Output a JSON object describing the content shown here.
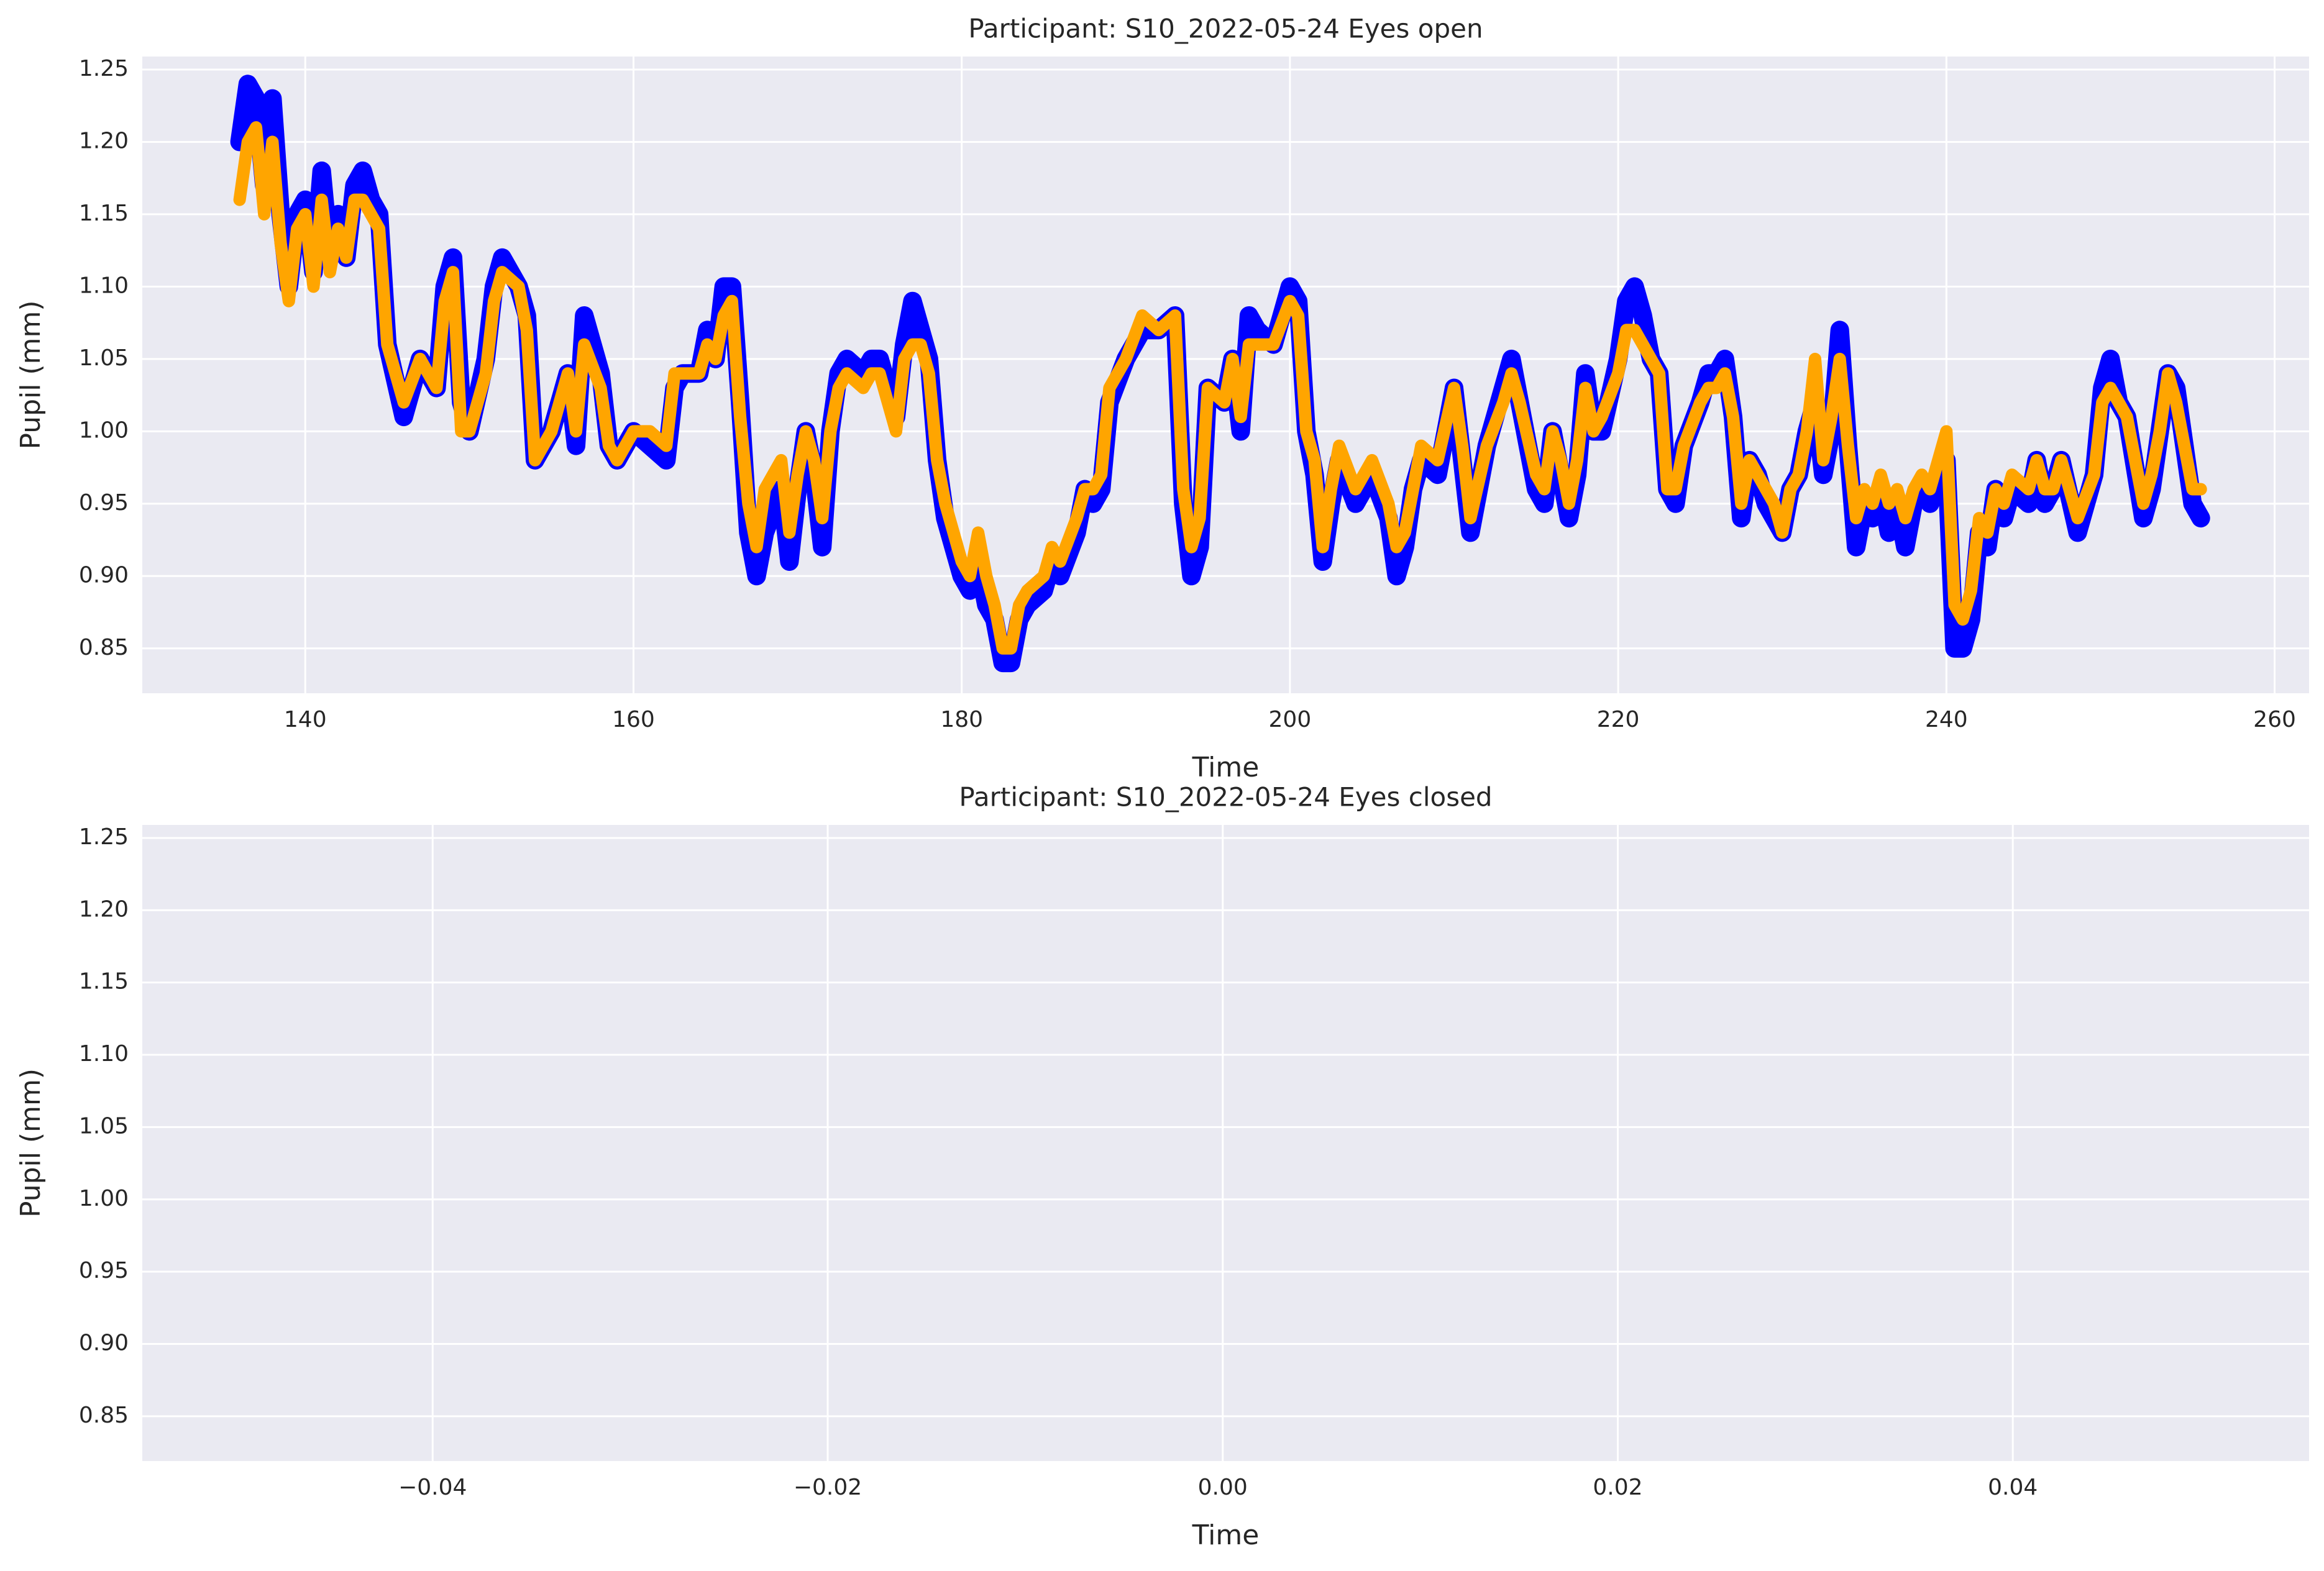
{
  "chart_data": [
    {
      "type": "line",
      "title": "Participant: S10_2022-05-24 Eyes open",
      "x_label": "Time",
      "y_label": "Pupil (mm)",
      "x": [
        136,
        136.5,
        137,
        137.5,
        138,
        138.5,
        139,
        139.5,
        140,
        140.5,
        141,
        141.5,
        142,
        142.5,
        143,
        143.5,
        144,
        144.5,
        145,
        146,
        147,
        148,
        148.5,
        149,
        149.5,
        150,
        151,
        151.5,
        152,
        153,
        153.5,
        154,
        155,
        156,
        156.5,
        157,
        158,
        158.5,
        159,
        160,
        161,
        162,
        162.5,
        163,
        164,
        164.5,
        165,
        165.5,
        166,
        166.5,
        167,
        167.5,
        168,
        169,
        169.5,
        170,
        170.5,
        171,
        171.5,
        172,
        172.5,
        173,
        174,
        174.5,
        175,
        176,
        176.5,
        177,
        177.5,
        178,
        178.5,
        179,
        180,
        180.5,
        181,
        181.5,
        182,
        182.5,
        183,
        183.5,
        184,
        185,
        185.5,
        186,
        187,
        187.5,
        188,
        188.5,
        189,
        190,
        191,
        192,
        193,
        193.5,
        194,
        194.5,
        195,
        196,
        196.5,
        197,
        197.5,
        198,
        199,
        200,
        200.5,
        201,
        201.5,
        202,
        202.5,
        203,
        204,
        205,
        206,
        206.5,
        207,
        207.5,
        208,
        209,
        210,
        210.5,
        211,
        212,
        213,
        213.5,
        214,
        215,
        215.5,
        216,
        216.5,
        217,
        217.5,
        218,
        218.5,
        219,
        220,
        220.5,
        221,
        221.5,
        222,
        222.5,
        223,
        223.5,
        224,
        225,
        225.5,
        226,
        226.5,
        227,
        227.5,
        228,
        228.5,
        229,
        229.5,
        230,
        230.5,
        231,
        231.5,
        232,
        232.5,
        233,
        233.5,
        234,
        234.5,
        235,
        235.5,
        236,
        236.5,
        237,
        237.5,
        238,
        238.5,
        239,
        240,
        240.5,
        241,
        241.5,
        242,
        242.5,
        243,
        243.5,
        244,
        245,
        245.5,
        246,
        246.5,
        247,
        248,
        249,
        249.5,
        250,
        250.5,
        251,
        252,
        252.5,
        253,
        253.5,
        254,
        254.5,
        255,
        255.5
      ],
      "series": [
        {
          "color": "#0000ff",
          "values": [
            1.2,
            1.24,
            1.23,
            1.17,
            1.23,
            1.15,
            1.1,
            1.15,
            1.16,
            1.11,
            1.18,
            1.12,
            1.15,
            1.12,
            1.17,
            1.18,
            1.16,
            1.15,
            1.06,
            1.01,
            1.05,
            1.03,
            1.1,
            1.12,
            1.02,
            1.0,
            1.05,
            1.1,
            1.12,
            1.1,
            1.08,
            0.98,
            1.0,
            1.04,
            0.99,
            1.08,
            1.04,
            0.99,
            0.98,
            1.0,
            0.99,
            0.98,
            1.03,
            1.04,
            1.04,
            1.07,
            1.05,
            1.1,
            1.1,
            1.02,
            0.93,
            0.9,
            0.93,
            0.96,
            0.91,
            0.96,
            1.0,
            0.97,
            0.92,
            1.0,
            1.04,
            1.05,
            1.04,
            1.05,
            1.05,
            1.01,
            1.06,
            1.09,
            1.07,
            1.05,
            0.98,
            0.94,
            0.9,
            0.89,
            0.91,
            0.88,
            0.87,
            0.84,
            0.84,
            0.87,
            0.88,
            0.89,
            0.91,
            0.9,
            0.93,
            0.96,
            0.95,
            0.96,
            1.02,
            1.05,
            1.07,
            1.07,
            1.08,
            0.95,
            0.9,
            0.92,
            1.03,
            1.02,
            1.05,
            1.0,
            1.08,
            1.07,
            1.06,
            1.1,
            1.09,
            1.0,
            0.97,
            0.91,
            0.95,
            0.98,
            0.95,
            0.97,
            0.94,
            0.9,
            0.92,
            0.96,
            0.98,
            0.97,
            1.03,
            0.98,
            0.93,
            0.99,
            1.03,
            1.05,
            1.02,
            0.96,
            0.95,
            1.0,
            0.97,
            0.94,
            0.97,
            1.04,
            1.0,
            1.0,
            1.05,
            1.09,
            1.1,
            1.08,
            1.05,
            1.04,
            0.96,
            0.95,
            0.99,
            1.02,
            1.04,
            1.04,
            1.05,
            1.01,
            0.94,
            0.98,
            0.97,
            0.95,
            0.94,
            0.93,
            0.96,
            0.97,
            1.0,
            1.02,
            0.97,
            1.0,
            1.07,
            0.99,
            0.92,
            0.95,
            0.94,
            0.96,
            0.93,
            0.95,
            0.92,
            0.95,
            0.96,
            0.95,
            0.98,
            0.85,
            0.85,
            0.87,
            0.93,
            0.92,
            0.96,
            0.94,
            0.96,
            0.95,
            0.98,
            0.95,
            0.96,
            0.98,
            0.93,
            0.97,
            1.03,
            1.05,
            1.02,
            1.01,
            0.94,
            0.96,
            1.0,
            1.04,
            1.03,
            0.99,
            0.95,
            0.94
          ]
        },
        {
          "color": "#ffa500",
          "values": [
            1.16,
            1.2,
            1.21,
            1.15,
            1.2,
            1.13,
            1.09,
            1.14,
            1.15,
            1.1,
            1.16,
            1.11,
            1.14,
            1.12,
            1.16,
            1.16,
            1.15,
            1.14,
            1.06,
            1.02,
            1.05,
            1.03,
            1.09,
            1.11,
            1.0,
            1.0,
            1.04,
            1.09,
            1.11,
            1.1,
            1.07,
            0.98,
            1.0,
            1.04,
            1.0,
            1.06,
            1.03,
            0.99,
            0.98,
            1.0,
            1.0,
            0.99,
            1.04,
            1.04,
            1.04,
            1.06,
            1.05,
            1.08,
            1.09,
            1.01,
            0.95,
            0.92,
            0.96,
            0.98,
            0.93,
            0.97,
            1.0,
            0.98,
            0.94,
            1.0,
            1.03,
            1.04,
            1.03,
            1.04,
            1.04,
            1.0,
            1.05,
            1.06,
            1.06,
            1.04,
            0.98,
            0.95,
            0.91,
            0.9,
            0.93,
            0.9,
            0.88,
            0.85,
            0.85,
            0.88,
            0.89,
            0.9,
            0.92,
            0.91,
            0.94,
            0.96,
            0.96,
            0.97,
            1.03,
            1.05,
            1.08,
            1.07,
            1.08,
            0.96,
            0.92,
            0.94,
            1.03,
            1.02,
            1.05,
            1.01,
            1.06,
            1.06,
            1.06,
            1.09,
            1.08,
            1.0,
            0.98,
            0.92,
            0.96,
            0.99,
            0.96,
            0.98,
            0.95,
            0.92,
            0.93,
            0.96,
            0.99,
            0.98,
            1.03,
            0.99,
            0.94,
            0.99,
            1.02,
            1.04,
            1.02,
            0.97,
            0.96,
            1.0,
            0.98,
            0.95,
            0.98,
            1.03,
            1.0,
            1.01,
            1.04,
            1.07,
            1.07,
            1.06,
            1.05,
            1.04,
            0.96,
            0.96,
            0.99,
            1.02,
            1.03,
            1.03,
            1.04,
            1.01,
            0.95,
            0.98,
            0.97,
            0.96,
            0.95,
            0.93,
            0.96,
            0.97,
            1.0,
            1.05,
            0.98,
            1.01,
            1.05,
            0.99,
            0.94,
            0.96,
            0.95,
            0.97,
            0.95,
            0.96,
            0.94,
            0.96,
            0.97,
            0.96,
            1.0,
            0.88,
            0.87,
            0.89,
            0.94,
            0.93,
            0.96,
            0.95,
            0.97,
            0.96,
            0.98,
            0.96,
            0.96,
            0.98,
            0.94,
            0.97,
            1.02,
            1.03,
            1.02,
            1.01,
            0.95,
            0.97,
            1.0,
            1.04,
            1.02,
            0.99,
            0.96,
            0.96
          ]
        }
      ],
      "xlim": [
        130.07,
        262.1
      ],
      "ylim": [
        0.819,
        1.259
      ],
      "xticks": [
        140,
        160,
        180,
        200,
        220,
        240,
        260
      ],
      "yticks": [
        0.85,
        {
          "value": 0.9,
          "label": "0.90"
        },
        0.95,
        {
          "value": 1.0,
          "label": "1.00"
        },
        1.05,
        {
          "value": 1.1,
          "label": "1.10"
        },
        1.15,
        {
          "value": 1.2,
          "label": "1.20"
        },
        1.25
      ],
      "grid": true
    },
    {
      "type": "line",
      "title": "Participant: S10_2022-05-24 Eyes closed",
      "x_label": "Time",
      "y_label": "Pupil (mm)",
      "x": [],
      "series": [],
      "xlim": [
        -0.0547,
        0.055
      ],
      "ylim": [
        0.819,
        1.259
      ],
      "xticks": [
        {
          "value": -0.04,
          "label": "−0.04"
        },
        {
          "value": -0.02,
          "label": "−0.02"
        },
        {
          "value": 0,
          "label": "0.00"
        },
        {
          "value": 0.02,
          "label": "0.02"
        },
        {
          "value": 0.04,
          "label": "0.04"
        }
      ],
      "yticks": [
        0.85,
        {
          "value": 0.9,
          "label": "0.90"
        },
        0.95,
        {
          "value": 1.0,
          "label": "1.00"
        },
        1.05,
        {
          "value": 1.1,
          "label": "1.10"
        },
        1.15,
        {
          "value": 1.2,
          "label": "1.20"
        },
        1.25
      ],
      "grid": true
    }
  ]
}
